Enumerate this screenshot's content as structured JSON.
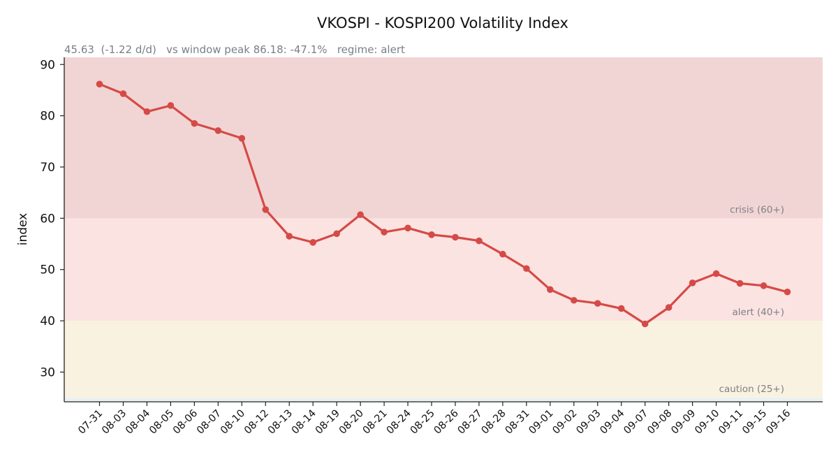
{
  "chart_data": {
    "type": "line",
    "title": "VKOSPI - KOSPI200 Volatility Index",
    "subtitle": "45.63  (-1.22 d/d)   vs window peak 86.18: -47.1%   regime: alert",
    "xlabel": "",
    "ylabel": "index",
    "ylim": [
      24.2,
      91.4
    ],
    "yticks": [
      30,
      40,
      50,
      60,
      70,
      80,
      90
    ],
    "categories": [
      "07-31",
      "08-03",
      "08-04",
      "08-05",
      "08-06",
      "08-07",
      "08-10",
      "08-12",
      "08-13",
      "08-14",
      "08-19",
      "08-20",
      "08-21",
      "08-24",
      "08-25",
      "08-26",
      "08-27",
      "08-28",
      "08-31",
      "09-01",
      "09-02",
      "09-03",
      "09-04",
      "09-07",
      "09-08",
      "09-09",
      "09-10",
      "09-11",
      "09-15",
      "09-16"
    ],
    "series": [
      {
        "values": [
          86.18,
          84.3,
          80.8,
          82.0,
          78.5,
          77.1,
          75.6,
          61.7,
          56.5,
          55.3,
          57.0,
          60.7,
          57.3,
          58.1,
          56.8,
          56.3,
          55.6,
          53.0,
          50.2,
          46.1,
          44.0,
          43.4,
          42.4,
          39.4,
          42.6,
          47.4,
          49.2,
          47.3,
          46.85,
          45.63
        ],
        "color": "#d54a47"
      }
    ],
    "bands": [
      {
        "label": "caution (25+)",
        "from": 25,
        "to": 40,
        "color": "#faf2e0"
      },
      {
        "label": "alert (40+)",
        "from": 40,
        "to": 60,
        "color": "#fbe3e1"
      },
      {
        "label": "crisis (60+)",
        "from": 60,
        "to": 91.4,
        "color": "#f1d5d4"
      }
    ],
    "grid": false,
    "legend": "none"
  }
}
